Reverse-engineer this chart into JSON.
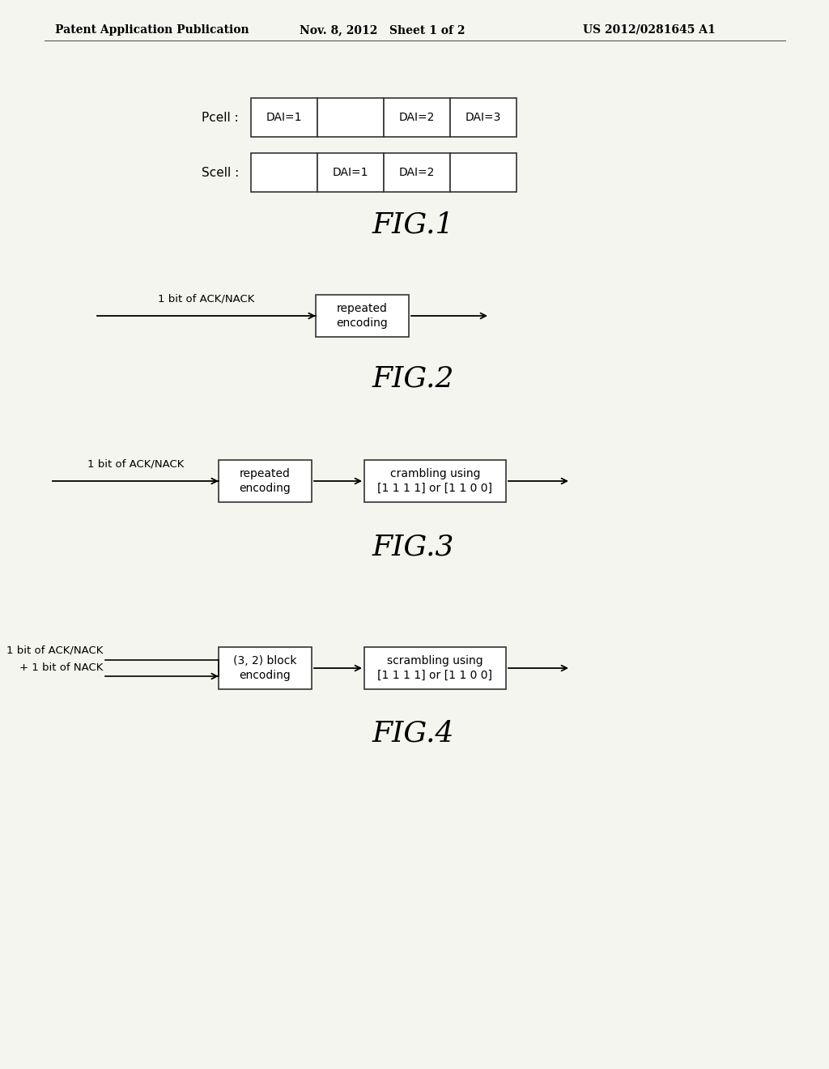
{
  "bg_color": "#f5f5f0",
  "header_left": "Patent Application Publication",
  "header_mid": "Nov. 8, 2012   Sheet 1 of 2",
  "header_right": "US 2012/0281645 A1",
  "fig1": {
    "label": "FIG.1",
    "pcell_label": "Pcell :",
    "scell_label": "Scell :",
    "pcell_boxes": [
      "DAI=1",
      "",
      "DAI=2",
      "DAI=3"
    ],
    "scell_boxes": [
      "",
      "DAI=1",
      "DAI=2",
      ""
    ]
  },
  "fig2": {
    "label": "FIG.2",
    "input_label": "1 bit of ACK/NACK",
    "box_text": "repeated\nencoding"
  },
  "fig3": {
    "label": "FIG.3",
    "input_label": "1 bit of ACK/NACK",
    "box1_text": "repeated\nencoding",
    "box2_text": "crambling using\n[1 1 1 1] or [1 1 0 0]"
  },
  "fig4": {
    "label": "FIG.4",
    "input_line1": "1 bit of ACK/NACK",
    "input_line2": "+ 1 bit of NACK",
    "box1_text": "(3, 2) block\nencoding",
    "box2_text": "scrambling using\n[1 1 1 1] or [1 1 0 0]"
  }
}
